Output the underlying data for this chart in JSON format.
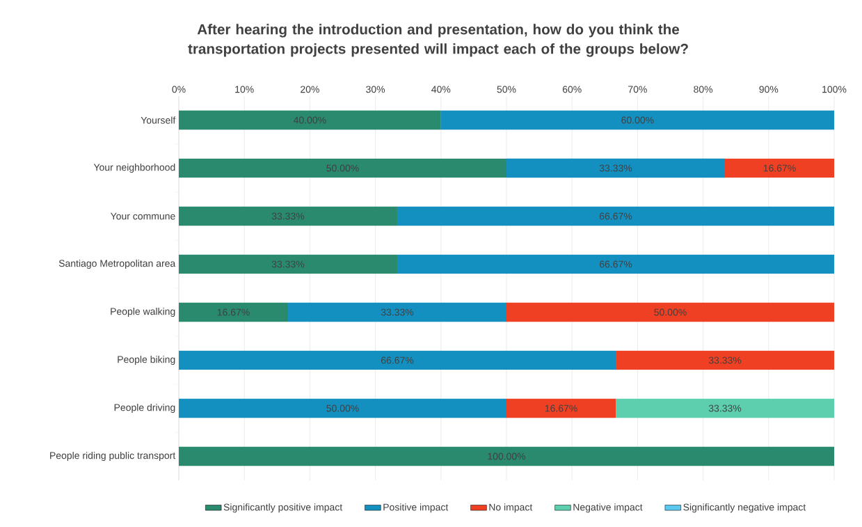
{
  "chart_data": {
    "type": "bar",
    "orientation": "horizontal",
    "stacked": true,
    "title": "After hearing the introduction and presentation, how do you think the transportation projects presented will impact each of the groups below?",
    "categories": [
      "Yourself",
      "Your neighborhood",
      "Your commune",
      "Santiago Metropolitan area",
      "People walking",
      "People biking",
      "People driving",
      "People riding public transport"
    ],
    "series": [
      {
        "name": "Significantly positive impact",
        "color": "#2a8a6e",
        "values": [
          40,
          50,
          33.33,
          33.33,
          16.67,
          null,
          null,
          100
        ],
        "value_labels": [
          "40.00%",
          "50.00%",
          "33.33%",
          "33.33%",
          "16.67%",
          null,
          null,
          "100.00%"
        ]
      },
      {
        "name": "Positive impact",
        "color": "#1390c0",
        "values": [
          60,
          33.33,
          66.67,
          66.67,
          33.33,
          66.67,
          50,
          null
        ],
        "value_labels": [
          "60.00%",
          "33.33%",
          "66.67%",
          "66.67%",
          "33.33%",
          "66.67%",
          "50.00%",
          null
        ]
      },
      {
        "name": "No impact",
        "color": "#ef4023",
        "values": [
          null,
          16.67,
          null,
          null,
          50,
          33.33,
          16.67,
          null
        ],
        "value_labels": [
          null,
          "16.67%",
          null,
          null,
          "50.00%",
          "33.33%",
          "16.67%",
          null
        ]
      },
      {
        "name": "Negative impact",
        "color": "#5dcfae",
        "values": [
          null,
          null,
          null,
          null,
          null,
          null,
          33.33,
          null
        ],
        "value_labels": [
          null,
          null,
          null,
          null,
          null,
          null,
          "33.33%",
          null
        ]
      },
      {
        "name": "Significantly negative impact",
        "color": "#5bc8ef",
        "values": [
          null,
          null,
          null,
          null,
          null,
          null,
          null,
          null
        ],
        "value_labels": [
          null,
          null,
          null,
          null,
          null,
          null,
          null,
          null
        ]
      }
    ],
    "xlim": [
      0,
      100
    ],
    "xticks": [
      {
        "value": 0,
        "label": "0%"
      },
      {
        "value": 10,
        "label": "10%"
      },
      {
        "value": 20,
        "label": "20%"
      },
      {
        "value": 30,
        "label": "30%"
      },
      {
        "value": 40,
        "label": "40%"
      },
      {
        "value": 50,
        "label": "50%"
      },
      {
        "value": 60,
        "label": "60%"
      },
      {
        "value": 70,
        "label": "70%"
      },
      {
        "value": 80,
        "label": "80%"
      },
      {
        "value": 90,
        "label": "90%"
      },
      {
        "value": 100,
        "label": "100%"
      }
    ],
    "grid": "x",
    "legend": "bottom"
  }
}
